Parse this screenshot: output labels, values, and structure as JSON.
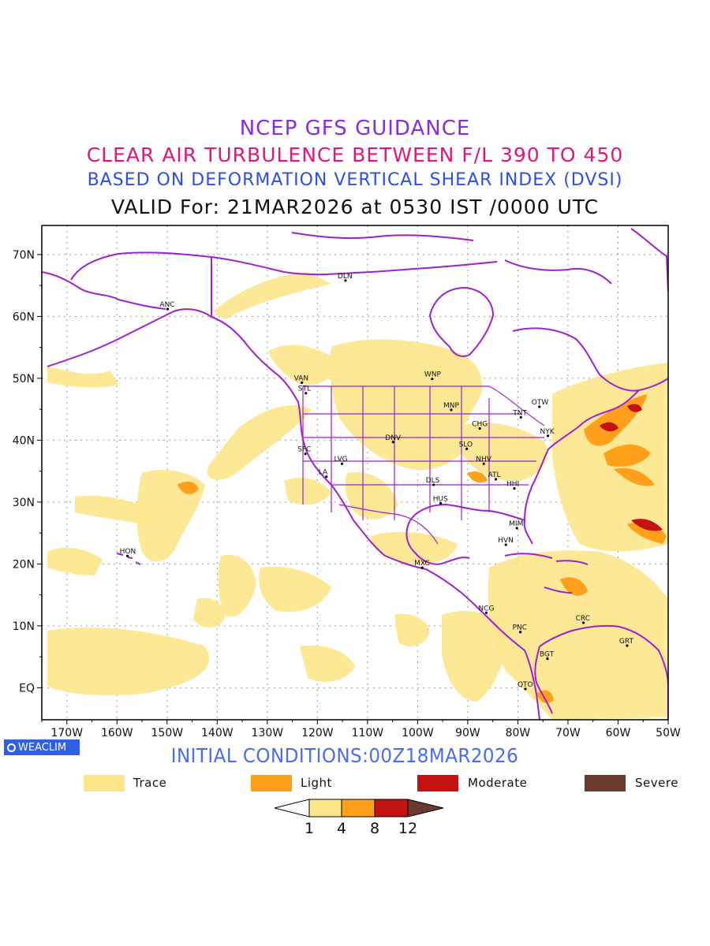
{
  "titles": {
    "line1": "NCEP GFS GUIDANCE",
    "line2": "CLEAR AIR TURBULENCE BETWEEN F/L 390 TO 450",
    "line3": "BASED ON DEFORMATION VERTICAL SHEAR INDEX (DVSI)",
    "line4": "VALID For: 21MAR2026 at 0530 IST /0000 UTC"
  },
  "colors": {
    "title1": "#8a2be2",
    "title2": "#e4157b",
    "title3": "#2b4fe8",
    "title4": "#111111",
    "initial": "#4a6cf0",
    "boundary": "#a020d0",
    "trace": "#fde68a",
    "light": "#ff9f1a",
    "moderate": "#c41212",
    "severe": "#6b3a2e"
  },
  "map": {
    "lat_ticks": [
      "70N",
      "60N",
      "50N",
      "40N",
      "30N",
      "20N",
      "10N",
      "EQ"
    ],
    "lon_ticks": [
      "170W",
      "160W",
      "150W",
      "140W",
      "130W",
      "120W",
      "110W",
      "100W",
      "90W",
      "80W",
      "70W",
      "60W",
      "50W"
    ],
    "stations": [
      {
        "code": "ANC",
        "lon": -149.9,
        "lat": 61.2
      },
      {
        "code": "DLN",
        "lon": -114.4,
        "lat": 65.8
      },
      {
        "code": "VAN",
        "lon": -123.1,
        "lat": 49.3
      },
      {
        "code": "STL",
        "lon": -122.3,
        "lat": 47.6
      },
      {
        "code": "WNP",
        "lon": -97.1,
        "lat": 49.9
      },
      {
        "code": "OTW",
        "lon": -75.7,
        "lat": 45.4
      },
      {
        "code": "TNT",
        "lon": -79.4,
        "lat": 43.7
      },
      {
        "code": "MNP",
        "lon": -93.3,
        "lat": 44.9
      },
      {
        "code": "CHG",
        "lon": -87.6,
        "lat": 41.9
      },
      {
        "code": "NYK",
        "lon": -74.0,
        "lat": 40.7
      },
      {
        "code": "DNV",
        "lon": -104.9,
        "lat": 39.7
      },
      {
        "code": "SFC",
        "lon": -122.4,
        "lat": 37.8
      },
      {
        "code": "SLO",
        "lon": -90.2,
        "lat": 38.6
      },
      {
        "code": "LVG",
        "lon": -115.1,
        "lat": 36.2
      },
      {
        "code": "NHV",
        "lon": -86.8,
        "lat": 36.2
      },
      {
        "code": "LA",
        "lon": -118.2,
        "lat": 34.1
      },
      {
        "code": "ATL",
        "lon": -84.4,
        "lat": 33.7
      },
      {
        "code": "DLS",
        "lon": -96.8,
        "lat": 32.8
      },
      {
        "code": "HHI",
        "lon": -80.7,
        "lat": 32.2
      },
      {
        "code": "HUS",
        "lon": -95.4,
        "lat": 29.8
      },
      {
        "code": "MIM",
        "lon": -80.2,
        "lat": 25.8
      },
      {
        "code": "HVN",
        "lon": -82.4,
        "lat": 23.1
      },
      {
        "code": "HON",
        "lon": -157.9,
        "lat": 21.3
      },
      {
        "code": "MXC",
        "lon": -99.1,
        "lat": 19.4
      },
      {
        "code": "NCG",
        "lon": -86.3,
        "lat": 12.1
      },
      {
        "code": "CRC",
        "lon": -66.9,
        "lat": 10.5
      },
      {
        "code": "PNC",
        "lon": -79.5,
        "lat": 9.0
      },
      {
        "code": "GRT",
        "lon": -58.2,
        "lat": 6.8
      },
      {
        "code": "BGT",
        "lon": -74.1,
        "lat": 4.7
      },
      {
        "code": "QTO",
        "lon": -78.5,
        "lat": -0.2
      }
    ]
  },
  "initial_conditions": "INITIAL CONDITIONS:00Z18MAR2026",
  "badge": "WEACLIM",
  "legend": [
    {
      "label": "Trace",
      "color": "#fde68a"
    },
    {
      "label": "Light",
      "color": "#ff9f1a"
    },
    {
      "label": "Moderate",
      "color": "#c41212"
    },
    {
      "label": "Severe",
      "color": "#6b3a2e"
    }
  ],
  "colorbar": {
    "labels": [
      "1",
      "4",
      "8",
      "12"
    ]
  }
}
